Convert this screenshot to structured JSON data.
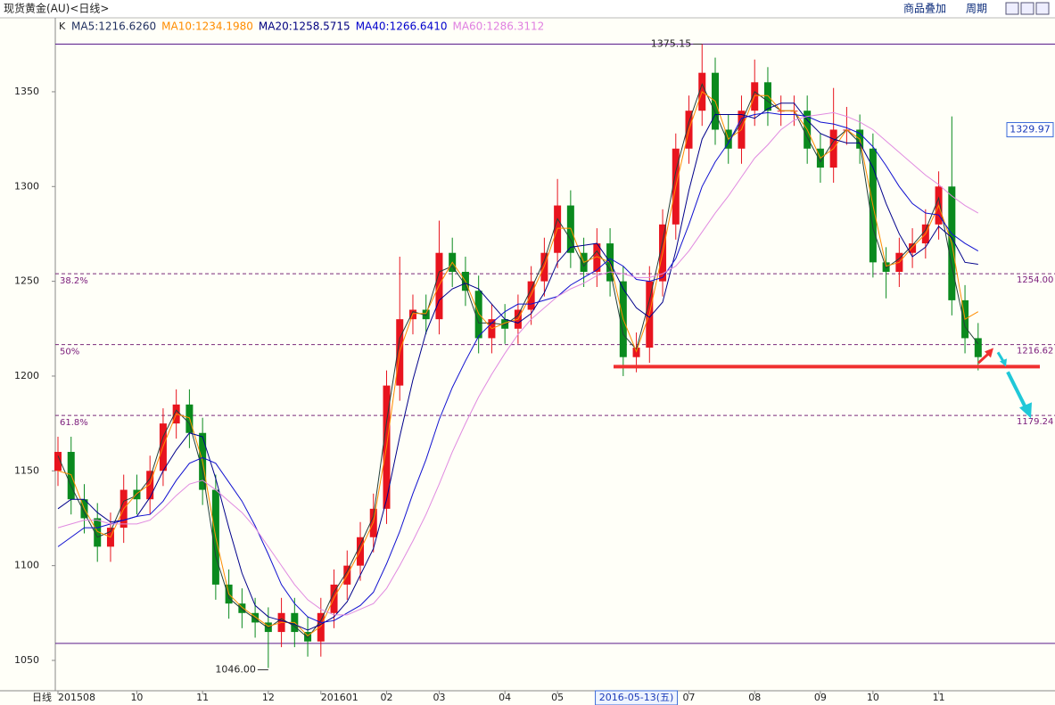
{
  "header": {
    "title": "现货黄金(AU)<日线>",
    "buttons": [
      "商品叠加",
      "周期"
    ]
  },
  "chart_data": {
    "type": "candlestick",
    "x_axis_name": "日线",
    "legend_prefix": "K",
    "categories": [
      "201508",
      null,
      null,
      null,
      null,
      null,
      "10",
      null,
      null,
      null,
      null,
      "11",
      null,
      null,
      null,
      null,
      "12",
      null,
      null,
      null,
      "201601",
      null,
      null,
      null,
      null,
      "02",
      null,
      null,
      null,
      "03",
      null,
      null,
      null,
      null,
      "04",
      null,
      null,
      null,
      "05",
      null,
      null,
      null,
      null,
      null,
      "2016-05-13(五)",
      null,
      null,
      null,
      "07",
      null,
      null,
      null,
      null,
      "08",
      null,
      null,
      null,
      null,
      "09",
      null,
      null,
      null,
      "10",
      null,
      null,
      null,
      null,
      "11",
      null,
      null,
      null
    ],
    "open": [
      1150,
      1160,
      1135,
      1125,
      1110,
      1120,
      1140,
      1135,
      1150,
      1175,
      1185,
      1170,
      1140,
      1090,
      1080,
      1075,
      1070,
      1065,
      1075,
      1065,
      1060,
      1075,
      1090,
      1100,
      1115,
      1130,
      1195,
      1230,
      1235,
      1230,
      1265,
      1255,
      1245,
      1220,
      1230,
      1225,
      1235,
      1250,
      1265,
      1290,
      1265,
      1255,
      1270,
      1250,
      1210,
      1215,
      1250,
      1280,
      1320,
      1340,
      1360,
      1330,
      1320,
      1340,
      1355,
      1340,
      1340,
      1340,
      1320,
      1310,
      1330,
      1330,
      1320,
      1260,
      1255,
      1265,
      1270,
      1280,
      1300,
      1240,
      1220
    ],
    "high": [
      1168,
      1168,
      1143,
      1133,
      1128,
      1148,
      1148,
      1158,
      1183,
      1193,
      1193,
      1178,
      1148,
      1098,
      1088,
      1083,
      1078,
      1083,
      1083,
      1073,
      1083,
      1098,
      1108,
      1123,
      1138,
      1203,
      1263,
      1243,
      1243,
      1282,
      1273,
      1263,
      1253,
      1238,
      1238,
      1243,
      1258,
      1273,
      1304,
      1298,
      1273,
      1278,
      1278,
      1258,
      1223,
      1258,
      1288,
      1328,
      1348,
      1375.15,
      1368,
      1338,
      1348,
      1367,
      1363,
      1348,
      1348,
      1348,
      1328,
      1352,
      1342,
      1338,
      1328,
      1268,
      1273,
      1278,
      1288,
      1308,
      1337,
      1248,
      1228
    ],
    "low": [
      1142,
      1127,
      1117,
      1102,
      1102,
      1112,
      1127,
      1127,
      1142,
      1167,
      1162,
      1132,
      1082,
      1072,
      1067,
      1062,
      1046,
      1057,
      1057,
      1052,
      1052,
      1067,
      1082,
      1092,
      1107,
      1122,
      1187,
      1222,
      1222,
      1222,
      1247,
      1237,
      1212,
      1212,
      1217,
      1217,
      1227,
      1242,
      1257,
      1257,
      1247,
      1247,
      1242,
      1200,
      1202,
      1207,
      1242,
      1272,
      1312,
      1332,
      1322,
      1312,
      1312,
      1332,
      1332,
      1332,
      1332,
      1312,
      1302,
      1302,
      1322,
      1312,
      1252,
      1241,
      1247,
      1257,
      1262,
      1272,
      1232,
      1212,
      1203
    ],
    "close": [
      1160,
      1135,
      1125,
      1110,
      1120,
      1140,
      1135,
      1150,
      1175,
      1185,
      1170,
      1140,
      1090,
      1080,
      1075,
      1070,
      1065,
      1075,
      1065,
      1060,
      1075,
      1090,
      1100,
      1115,
      1130,
      1195,
      1230,
      1235,
      1230,
      1265,
      1255,
      1245,
      1220,
      1230,
      1225,
      1235,
      1250,
      1265,
      1290,
      1265,
      1255,
      1270,
      1250,
      1210,
      1215,
      1250,
      1280,
      1320,
      1340,
      1360,
      1330,
      1320,
      1340,
      1355,
      1340,
      1340,
      1340,
      1320,
      1310,
      1330,
      1330,
      1320,
      1260,
      1255,
      1265,
      1270,
      1280,
      1300,
      1240,
      1220,
      1210
    ],
    "up_color": "#e8141e",
    "down_color": "#0a8a1e",
    "series": [
      {
        "name": "MA5:1216.6260",
        "color": "#1f2f5f",
        "line_color": "#24403a",
        "values": [
          1158,
          1142,
          1128,
          1115,
          1118,
          1134,
          1137,
          1146,
          1168,
          1182,
          1175,
          1150,
          1105,
          1083,
          1077,
          1072,
          1067,
          1072,
          1068,
          1062,
          1071,
          1086,
          1097,
          1111,
          1126,
          1176,
          1220,
          1234,
          1232,
          1255,
          1258,
          1248,
          1228,
          1228,
          1227,
          1232,
          1246,
          1261,
          1283,
          1272,
          1258,
          1266,
          1256,
          1222,
          1214,
          1240,
          1271,
          1308,
          1334,
          1354,
          1339,
          1323,
          1334,
          1350,
          1345,
          1340,
          1340,
          1326,
          1313,
          1324,
          1330,
          1323,
          1278,
          1257,
          1262,
          1269,
          1277,
          1294,
          1258,
          1226,
          1217
        ]
      },
      {
        "name": "MA10:1234.1980",
        "color": "#ff8c00",
        "line_color": "#ff8c00",
        "values": [
          1150,
          1148,
          1130,
          1118,
          1115,
          1130,
          1138,
          1143,
          1163,
          1180,
          1178,
          1155,
          1115,
          1085,
          1078,
          1073,
          1068,
          1070,
          1070,
          1063,
          1068,
          1083,
          1095,
          1108,
          1123,
          1163,
          1213,
          1233,
          1233,
          1248,
          1260,
          1250,
          1233,
          1225,
          1228,
          1230,
          1243,
          1258,
          1278,
          1278,
          1260,
          1263,
          1260,
          1230,
          1213,
          1233,
          1265,
          1300,
          1330,
          1350,
          1345,
          1325,
          1330,
          1348,
          1348,
          1340,
          1340,
          1330,
          1315,
          1320,
          1330,
          1325,
          1290,
          1258,
          1260,
          1268,
          1275,
          1290,
          1270,
          1230,
          1234
        ]
      },
      {
        "name": "MA20:1258.5715",
        "color": "#000080",
        "line_color": "#00008b",
        "values": [
          1130,
          1135,
          1135,
          1128,
          1123,
          1124,
          1126,
          1136,
          1150,
          1161,
          1170,
          1168,
          1146,
          1120,
          1096,
          1079,
          1073,
          1071,
          1069,
          1066,
          1069,
          1073,
          1081,
          1095,
          1109,
          1135,
          1168,
          1198,
          1223,
          1240,
          1246,
          1249,
          1246,
          1238,
          1230,
          1228,
          1233,
          1244,
          1260,
          1268,
          1269,
          1270,
          1260,
          1246,
          1236,
          1231,
          1239,
          1266,
          1298,
          1325,
          1338,
          1338,
          1338,
          1336,
          1341,
          1344,
          1344,
          1335,
          1328,
          1325,
          1323,
          1323,
          1310,
          1291,
          1275,
          1263,
          1268,
          1279,
          1273,
          1260,
          1259
        ]
      },
      {
        "name": "MA40:1266.6410",
        "color": "#0000cd",
        "line_color": "#1010d0",
        "values": [
          1110,
          1115,
          1120,
          1120,
          1122,
          1124,
          1126,
          1127,
          1134,
          1145,
          1154,
          1157,
          1154,
          1144,
          1134,
          1121,
          1106,
          1090,
          1080,
          1073,
          1070,
          1071,
          1075,
          1079,
          1086,
          1101,
          1118,
          1138,
          1156,
          1177,
          1194,
          1208,
          1221,
          1228,
          1234,
          1238,
          1238,
          1240,
          1242,
          1248,
          1252,
          1256,
          1262,
          1258,
          1251,
          1250,
          1252,
          1262,
          1280,
          1300,
          1313,
          1323,
          1336,
          1338,
          1339,
          1338,
          1338,
          1337,
          1334,
          1333,
          1331,
          1328,
          1321,
          1311,
          1300,
          1291,
          1286,
          1285,
          1275,
          1270,
          1266
        ]
      },
      {
        "name": "MA60:1286.3112",
        "color": "#e080e0",
        "line_color": "#e08ae0",
        "values": [
          1120,
          1122,
          1124,
          1124,
          1122,
          1122,
          1122,
          1124,
          1130,
          1137,
          1143,
          1145,
          1140,
          1134,
          1128,
          1120,
          1110,
          1100,
          1090,
          1082,
          1077,
          1074,
          1074,
          1077,
          1080,
          1088,
          1100,
          1113,
          1127,
          1143,
          1160,
          1175,
          1189,
          1201,
          1212,
          1222,
          1230,
          1236,
          1242,
          1246,
          1249,
          1253,
          1255,
          1254,
          1252,
          1252,
          1254,
          1258,
          1266,
          1276,
          1286,
          1295,
          1305,
          1315,
          1322,
          1330,
          1335,
          1337,
          1338,
          1339,
          1337,
          1334,
          1330,
          1324,
          1318,
          1312,
          1306,
          1301,
          1295,
          1290,
          1286
        ]
      }
    ],
    "ylim": [
      1034,
      1389
    ],
    "yticks": [
      1050,
      1100,
      1150,
      1200,
      1250,
      1300,
      1350
    ],
    "high_annotation": 1375.15,
    "low_annotation": {
      "value": 1046,
      "label": "1046.00"
    },
    "range_lines": [
      1375.15,
      1059
    ],
    "fib_levels": [
      {
        "value": 1254,
        "label": "38.2%",
        "value_label": "1254.00"
      },
      {
        "value": 1216.62,
        "label": "50%",
        "value_label": "1216.62"
      },
      {
        "value": 1179.24,
        "label": "61.8%",
        "value_label": "1179.24"
      }
    ],
    "cursor_price": 1329.97,
    "support_line": 1205
  }
}
